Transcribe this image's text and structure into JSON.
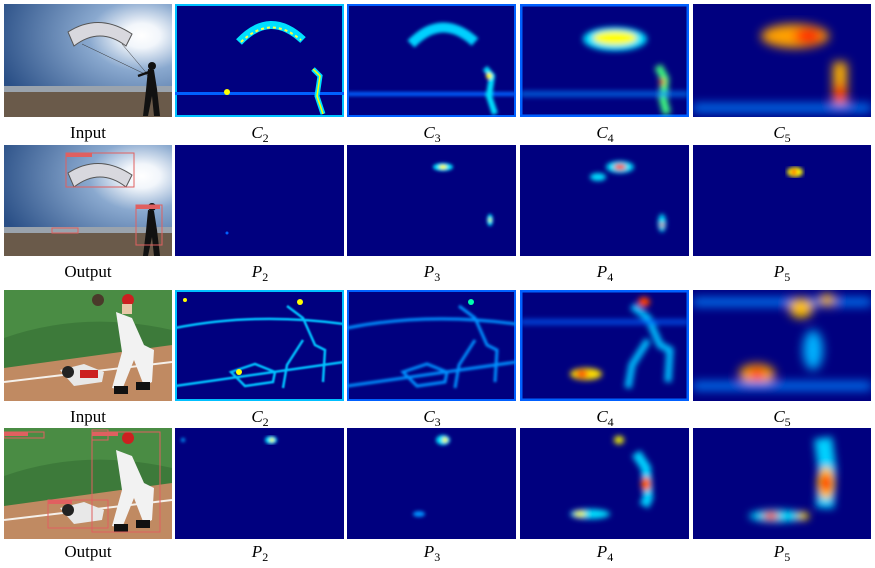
{
  "figure": {
    "rows": [
      {
        "row_id": "parachute-backbone",
        "captions": [
          {
            "text": "Input"
          },
          {
            "sym": "C",
            "sub": "2"
          },
          {
            "sym": "C",
            "sub": "3"
          },
          {
            "sym": "C",
            "sub": "4"
          },
          {
            "sym": "C",
            "sub": "5"
          }
        ]
      },
      {
        "row_id": "parachute-pyramid",
        "captions": [
          {
            "text": "Output"
          },
          {
            "sym": "P",
            "sub": "2"
          },
          {
            "sym": "P",
            "sub": "3"
          },
          {
            "sym": "P",
            "sub": "4"
          },
          {
            "sym": "P",
            "sub": "5"
          }
        ]
      },
      {
        "row_id": "baseball-backbone",
        "captions": [
          {
            "text": "Input"
          },
          {
            "sym": "C",
            "sub": "2"
          },
          {
            "sym": "C",
            "sub": "3"
          },
          {
            "sym": "C",
            "sub": "4"
          },
          {
            "sym": "C",
            "sub": "5"
          }
        ]
      },
      {
        "row_id": "baseball-pyramid",
        "captions": [
          {
            "text": "Output"
          },
          {
            "sym": "P",
            "sub": "2"
          },
          {
            "sym": "P",
            "sub": "3"
          },
          {
            "sym": "P",
            "sub": "4"
          },
          {
            "sym": "P",
            "sub": "5"
          }
        ]
      }
    ],
    "colors": {
      "heatmap_background": "#00007f",
      "heatmap_mid": "#00a0ff",
      "heatmap_high": "#ffff00",
      "heatmap_peak": "#ff0000",
      "detection_box": "#e06060"
    }
  }
}
